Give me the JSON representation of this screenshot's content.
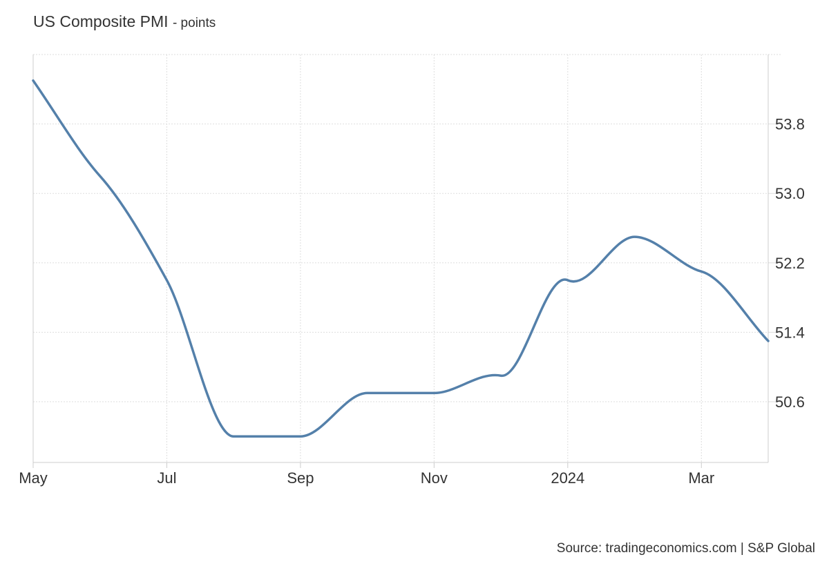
{
  "header": {
    "title": "US Composite PMI",
    "unit": "- points"
  },
  "footer": {
    "source": "Source: tradingeconomics.com | S&P Global"
  },
  "colors": {
    "line": "#5480aa",
    "grid": "#dddddd",
    "axis": "#cccccc"
  },
  "chart_data": {
    "type": "line",
    "title": "US Composite PMI",
    "subtitle": "- points",
    "xlabel": "",
    "ylabel": "",
    "grid": true,
    "x_axis": {
      "range": [
        "2023-05",
        "2024-04"
      ],
      "tick_positions": [
        "2023-05",
        "2023-07",
        "2023-09",
        "2023-11",
        "2024-01",
        "2024-03"
      ],
      "tick_labels": [
        "May",
        "Jul",
        "Sep",
        "Nov",
        "2024",
        "Mar"
      ]
    },
    "y_axis": {
      "side": "right",
      "range": [
        49.9,
        54.6
      ],
      "ticks": [
        50.6,
        51.4,
        52.2,
        53.0,
        53.8
      ]
    },
    "series": [
      {
        "x": [
          "2023-05",
          "2023-06",
          "2023-07",
          "2023-08",
          "2023-09",
          "2023-10",
          "2023-11",
          "2023-12",
          "2024-01",
          "2024-02",
          "2024-03",
          "2024-04"
        ],
        "values": [
          54.3,
          53.2,
          52.0,
          50.2,
          50.2,
          50.7,
          50.7,
          50.9,
          52.0,
          52.5,
          52.1,
          51.3
        ]
      }
    ]
  }
}
